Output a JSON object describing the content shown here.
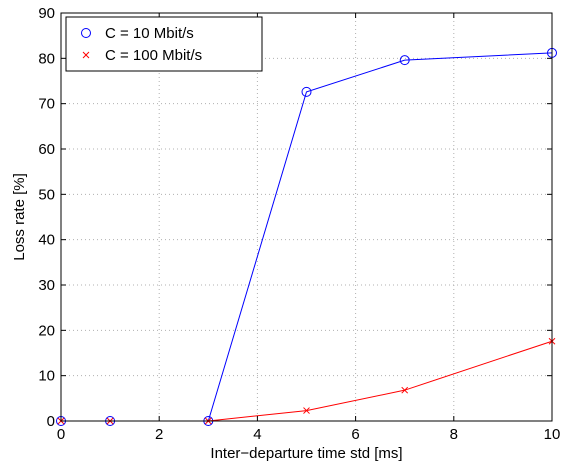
{
  "chart_data": {
    "type": "line",
    "xlabel": "Inter−departure time std [ms]",
    "ylabel": "Loss rate [%]",
    "xlim": [
      0,
      10
    ],
    "ylim": [
      0,
      90
    ],
    "xticks": [
      0,
      2,
      4,
      6,
      8,
      10
    ],
    "yticks": [
      0,
      10,
      20,
      30,
      40,
      50,
      60,
      70,
      80,
      90
    ],
    "grid": true,
    "legend_position": "top-left",
    "series": [
      {
        "name": "C = 10 Mbit/s",
        "color": "#0000ff",
        "marker": "circle",
        "x": [
          0,
          1,
          3,
          5,
          7,
          10
        ],
        "y": [
          0,
          0,
          0,
          72.6,
          79.6,
          81.2
        ]
      },
      {
        "name": "C = 100 Mbit/s",
        "color": "#ff0000",
        "marker": "cross",
        "x": [
          0,
          1,
          3,
          5,
          7,
          10
        ],
        "y": [
          0,
          0,
          0,
          2.3,
          6.8,
          17.6
        ]
      }
    ]
  }
}
